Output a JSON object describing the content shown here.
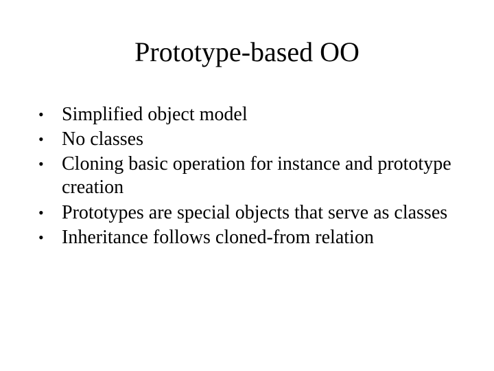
{
  "slide": {
    "title": "Prototype-based OO",
    "bullets": [
      "Simplified object model",
      "No classes",
      "Cloning basic operation for instance and prototype creation",
      "Prototypes are special objects that serve as classes",
      "Inheritance follows cloned-from relation"
    ],
    "title_fontsize": 40,
    "body_fontsize": 28,
    "font_family": "Times New Roman",
    "text_color": "#000000",
    "background_color": "#ffffff"
  }
}
